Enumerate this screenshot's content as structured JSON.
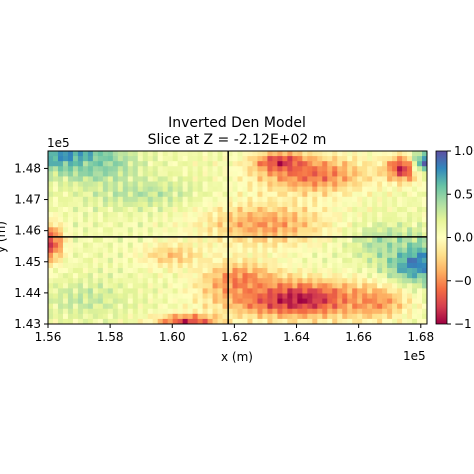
{
  "chart_data": {
    "type": "heatmap",
    "title_line1": "Inverted Den Model",
    "title_line2": "Slice at Z = -2.12E+02 m",
    "xlabel": "x (m)",
    "ylabel": "y (m)",
    "x_offset_label": "1e5",
    "y_offset_label": "1e5",
    "xlim": [
      1.56,
      1.682
    ],
    "ylim": [
      1.43,
      1.4856
    ],
    "x_ticks": [
      "1.56",
      "1.58",
      "1.60",
      "1.62",
      "1.64",
      "1.66",
      "1.68"
    ],
    "y_ticks": [
      "1.43",
      "1.44",
      "1.45",
      "1.46",
      "1.47",
      "1.48"
    ],
    "crosshair": {
      "x": 1.618,
      "y": 1.458
    },
    "colorbar": {
      "colormap": "Spectral",
      "ticks": [
        "1.00",
        "0.50",
        "0.00",
        "−0",
        "−1"
      ],
      "range": [
        -1.0,
        1.0
      ]
    },
    "grid": false,
    "legend": "none",
    "colors": {
      "spectral_low": "#9e0142",
      "spectral_mid": "#ffffbf",
      "spectral_high": "#5e4fa2",
      "crosshair": "#000000"
    },
    "anomalies": [
      {
        "name": "top-left high",
        "x": 1.568,
        "y": 1.4835,
        "rx": 0.014,
        "ry": 0.0045,
        "value": 0.9
      },
      {
        "name": "top-left moderate",
        "x": 1.575,
        "y": 1.48,
        "rx": 0.012,
        "ry": 0.005,
        "value": 0.5
      },
      {
        "name": "left band positive",
        "x": 1.59,
        "y": 1.472,
        "rx": 0.018,
        "ry": 0.005,
        "value": 0.35
      },
      {
        "name": "left negative",
        "x": 1.561,
        "y": 1.456,
        "rx": 0.004,
        "ry": 0.006,
        "value": -0.75
      },
      {
        "name": "bottom-left positive",
        "x": 1.572,
        "y": 1.438,
        "rx": 0.014,
        "ry": 0.006,
        "value": 0.3
      },
      {
        "name": "top-center negative",
        "x": 1.645,
        "y": 1.478,
        "rx": 0.018,
        "ry": 0.006,
        "value": -0.6
      },
      {
        "name": "top-center red",
        "x": 1.635,
        "y": 1.482,
        "rx": 0.008,
        "ry": 0.003,
        "value": -0.85
      },
      {
        "name": "top-right red",
        "x": 1.675,
        "y": 1.48,
        "rx": 0.006,
        "ry": 0.004,
        "value": -0.95
      },
      {
        "name": "top-right blue",
        "x": 1.681,
        "y": 1.482,
        "rx": 0.004,
        "ry": 0.004,
        "value": 0.8
      },
      {
        "name": "center-right orange",
        "x": 1.63,
        "y": 1.462,
        "rx": 0.02,
        "ry": 0.007,
        "value": -0.45
      },
      {
        "name": "right blue",
        "x": 1.678,
        "y": 1.45,
        "rx": 0.009,
        "ry": 0.007,
        "value": 0.9
      },
      {
        "name": "right green",
        "x": 1.668,
        "y": 1.456,
        "rx": 0.01,
        "ry": 0.006,
        "value": 0.4
      },
      {
        "name": "bottom-center low",
        "x": 1.64,
        "y": 1.438,
        "rx": 0.022,
        "ry": 0.006,
        "value": -0.95
      },
      {
        "name": "bottom-center mid",
        "x": 1.622,
        "y": 1.444,
        "rx": 0.012,
        "ry": 0.006,
        "value": -0.55
      },
      {
        "name": "bottom-right orange",
        "x": 1.665,
        "y": 1.437,
        "rx": 0.01,
        "ry": 0.005,
        "value": -0.5
      },
      {
        "name": "bottom edge red spots",
        "x": 1.605,
        "y": 1.431,
        "rx": 0.01,
        "ry": 0.002,
        "value": -0.8
      },
      {
        "name": "mid-left orange",
        "x": 1.6,
        "y": 1.452,
        "rx": 0.01,
        "ry": 0.004,
        "value": -0.3
      }
    ]
  }
}
